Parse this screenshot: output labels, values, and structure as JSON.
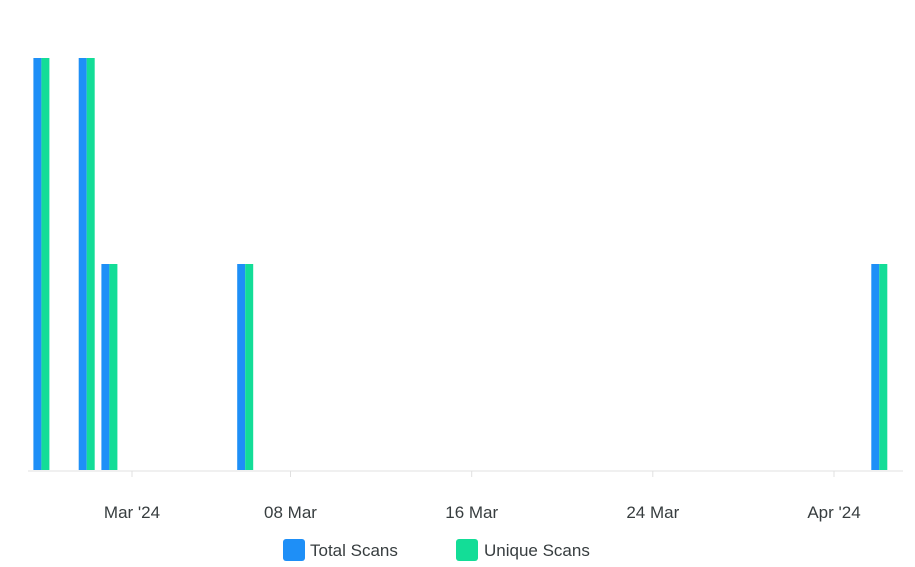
{
  "chart_data": {
    "type": "bar",
    "x_axis_type": "datetime",
    "x_range": [
      "2024-02-25",
      "2024-04-03"
    ],
    "x_ticks": [
      {
        "date": "2024-03-01",
        "label": "Mar '24"
      },
      {
        "date": "2024-03-08",
        "label": "08 Mar"
      },
      {
        "date": "2024-03-16",
        "label": "16 Mar"
      },
      {
        "date": "2024-03-24",
        "label": "24 Mar"
      },
      {
        "date": "2024-04-01",
        "label": "Apr '24"
      }
    ],
    "ylim": [
      0,
      2
    ],
    "grid": false,
    "legend_position": "bottom",
    "series": [
      {
        "name": "Total Scans",
        "color": "#1e8ff7",
        "points": [
          {
            "date": "2024-02-26",
            "value": 2
          },
          {
            "date": "2024-02-28",
            "value": 2
          },
          {
            "date": "2024-02-29",
            "value": 1
          },
          {
            "date": "2024-03-06",
            "value": 1
          },
          {
            "date": "2024-04-03",
            "value": 1
          }
        ]
      },
      {
        "name": "Unique Scans",
        "color": "#13dd97",
        "points": [
          {
            "date": "2024-02-26",
            "value": 2
          },
          {
            "date": "2024-02-28",
            "value": 2
          },
          {
            "date": "2024-02-29",
            "value": 1
          },
          {
            "date": "2024-03-06",
            "value": 1
          },
          {
            "date": "2024-04-03",
            "value": 1
          }
        ]
      }
    ]
  }
}
